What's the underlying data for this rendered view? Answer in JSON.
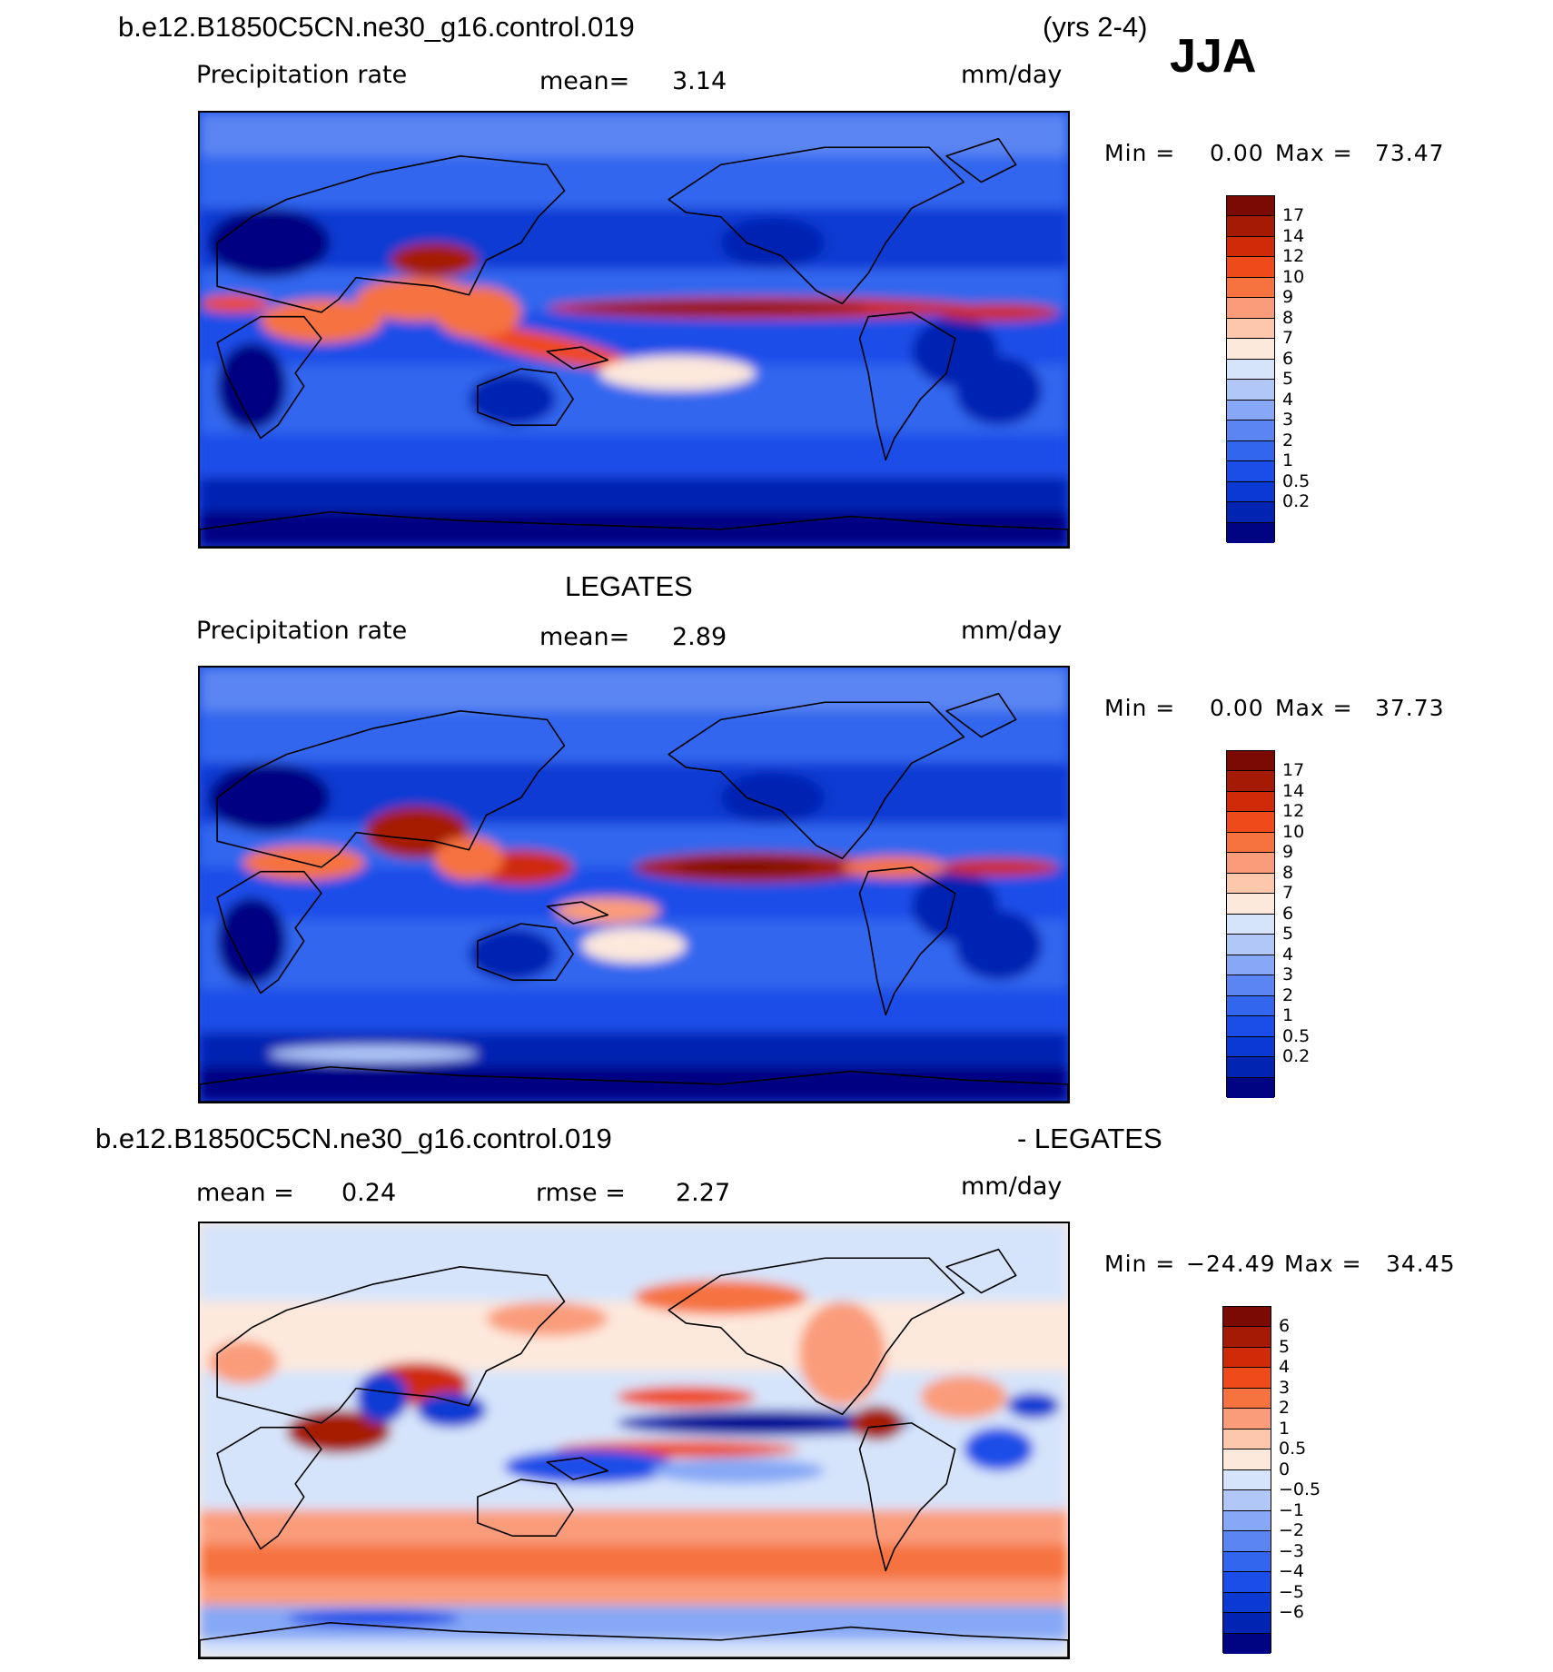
{
  "header": {
    "case_title": "b.e12.B1850C5CN.ne30_g16.control.019",
    "years": "(yrs 2-4)",
    "season": "JJA"
  },
  "colors": {
    "precip_scale": [
      "#010482",
      "#0224b2",
      "#0a3ad3",
      "#1b4ee8",
      "#3366ee",
      "#5a85f2",
      "#86a8f6",
      "#b0c7f8",
      "#d6e4fb",
      "#fde8dc",
      "#fcc7ab",
      "#fa9c7a",
      "#f6723f",
      "#ef4a1a",
      "#cf2b08",
      "#a51a04",
      "#7b0a02"
    ],
    "diff_scale": [
      "#010482",
      "#0224b2",
      "#0a3ad3",
      "#1b4ee8",
      "#3366ee",
      "#5a85f2",
      "#86a8f6",
      "#b0c7f8",
      "#d6e4fb",
      "#fde8dc",
      "#fcc7ab",
      "#fa9c7a",
      "#f6723f",
      "#ef4a1a",
      "#cf2b08",
      "#a51a04",
      "#7b0a02"
    ]
  },
  "chart_data": [
    {
      "type": "heatmap",
      "title": "b.e12.B1850C5CN.ne30_g16.control.019",
      "variable": "Precipitation rate",
      "mean_label": "mean=",
      "mean": "3.14",
      "units": "mm/day",
      "min_label": "Min =",
      "min": "0.00",
      "max_label": "Max =",
      "max": "73.47",
      "colorbar_levels": [
        "17",
        "14",
        "12",
        "10",
        "9",
        "8",
        "7",
        "6",
        "5",
        "4",
        "3",
        "2",
        "1",
        "0.5",
        "0.2"
      ]
    },
    {
      "type": "heatmap",
      "title": "LEGATES",
      "variable": "Precipitation rate",
      "mean_label": "mean=",
      "mean": "2.89",
      "units": "mm/day",
      "min_label": "Min =",
      "min": "0.00",
      "max_label": "Max =",
      "max": "37.73",
      "colorbar_levels": [
        "17",
        "14",
        "12",
        "10",
        "9",
        "8",
        "7",
        "6",
        "5",
        "4",
        "3",
        "2",
        "1",
        "0.5",
        "0.2"
      ]
    },
    {
      "type": "heatmap",
      "title": "b.e12.B1850C5CN.ne30_g16.control.019",
      "title_suffix": "- LEGATES",
      "mean_label": "mean =",
      "mean": "0.24",
      "rmse_label": "rmse =",
      "rmse": "2.27",
      "units": "mm/day",
      "min_label": "Min =",
      "min": "−24.49",
      "max_label": "Max =",
      "max": "34.45",
      "colorbar_levels": [
        "6",
        "5",
        "4",
        "3",
        "2",
        "1",
        "0.5",
        "0",
        "−0.5",
        "−1",
        "−2",
        "−3",
        "−4",
        "−5",
        "−6"
      ]
    }
  ]
}
